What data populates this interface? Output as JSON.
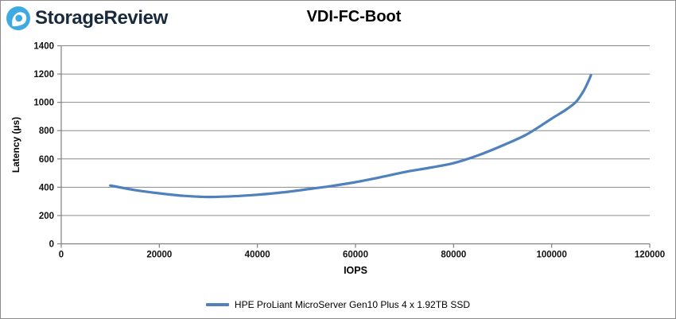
{
  "header": {
    "brand": "StorageReview",
    "brand_color": "#1a2a3d",
    "logo_color": "#3fa9e1"
  },
  "title": "VDI-FC-Boot",
  "chart_data": {
    "type": "line",
    "title": "VDI-FC-Boot",
    "xlabel": "IOPS",
    "ylabel": "Latency (µs)",
    "xlim": [
      0,
      120000
    ],
    "ylim": [
      0,
      1400
    ],
    "xticks": [
      0,
      20000,
      40000,
      60000,
      80000,
      100000,
      120000
    ],
    "yticks": [
      0,
      200,
      400,
      600,
      800,
      1000,
      1200,
      1400
    ],
    "grid": "horizontal",
    "grid_color": "#8a8a8a",
    "axis_color": "#808080",
    "tick_label_color": "#111111",
    "legend_position": "bottom",
    "series": [
      {
        "name": "HPE ProLiant MicroServer Gen10 Plus 4 x 1.92TB SSD",
        "color": "#4F81BD",
        "points": [
          [
            10000,
            412
          ],
          [
            15000,
            380
          ],
          [
            20000,
            357
          ],
          [
            25000,
            339
          ],
          [
            30000,
            331
          ],
          [
            35000,
            336
          ],
          [
            40000,
            347
          ],
          [
            45000,
            363
          ],
          [
            50000,
            385
          ],
          [
            55000,
            408
          ],
          [
            60000,
            436
          ],
          [
            65000,
            470
          ],
          [
            70000,
            507
          ],
          [
            75000,
            537
          ],
          [
            80000,
            570
          ],
          [
            85000,
            625
          ],
          [
            90000,
            695
          ],
          [
            95000,
            775
          ],
          [
            100000,
            885
          ],
          [
            103000,
            950
          ],
          [
            105000,
            1005
          ],
          [
            106500,
            1080
          ],
          [
            107500,
            1150
          ],
          [
            108000,
            1192
          ]
        ]
      }
    ]
  }
}
